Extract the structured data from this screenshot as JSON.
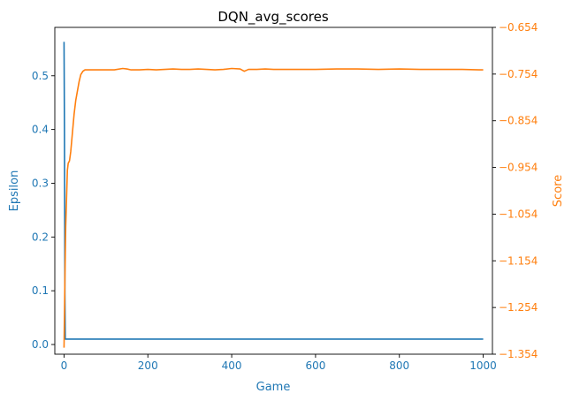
{
  "chart_data": {
    "type": "line",
    "title": "DQN_avg_scores",
    "xlabel": "Game",
    "ylabel_left": "Epsilon",
    "ylabel_right": "Score",
    "xlim": [
      -22,
      1022
    ],
    "ylim_left": [
      -0.018,
      0.59
    ],
    "ylim_right": [
      -1.354,
      -0.654
    ],
    "x_ticks": [
      0,
      200,
      400,
      600,
      800,
      1000
    ],
    "y_ticks_left": [
      0.0,
      0.1,
      0.2,
      0.3,
      0.4,
      0.5
    ],
    "y_ticks_right": [
      -1.354,
      -1.254,
      -1.154,
      -1.054,
      -0.954,
      -0.854,
      -0.754,
      -0.654
    ],
    "y_tick_labels_right": [
      "−1.354",
      "−1.254",
      "−1.154",
      "−1.054",
      "−0.954",
      "−0.854",
      "−0.754",
      "−0.654"
    ],
    "grid": false,
    "colors": {
      "epsilon": "#1f77b4",
      "score": "#ff7f0e"
    },
    "series": [
      {
        "axis": "left",
        "x": [
          0,
          1,
          2,
          3,
          1000
        ],
        "values": [
          0.563,
          0.4,
          0.1,
          0.01,
          0.01
        ]
      },
      {
        "axis": "right",
        "x": [
          0,
          2,
          4,
          6,
          8,
          10,
          13,
          16,
          20,
          24,
          28,
          32,
          36,
          40,
          45,
          50,
          60,
          80,
          100,
          120,
          140,
          150,
          160,
          180,
          200,
          220,
          240,
          260,
          280,
          300,
          320,
          340,
          360,
          380,
          400,
          420,
          430,
          440,
          460,
          480,
          500,
          550,
          600,
          650,
          700,
          750,
          800,
          850,
          900,
          950,
          990,
          1000
        ],
        "values": [
          -1.34,
          -1.2,
          -1.08,
          -1.02,
          -0.96,
          -0.945,
          -0.94,
          -0.92,
          -0.88,
          -0.84,
          -0.81,
          -0.79,
          -0.77,
          -0.755,
          -0.748,
          -0.745,
          -0.745,
          -0.745,
          -0.745,
          -0.745,
          -0.742,
          -0.743,
          -0.745,
          -0.745,
          -0.744,
          -0.745,
          -0.744,
          -0.743,
          -0.744,
          -0.744,
          -0.743,
          -0.744,
          -0.745,
          -0.744,
          -0.742,
          -0.743,
          -0.748,
          -0.744,
          -0.744,
          -0.743,
          -0.744,
          -0.744,
          -0.744,
          -0.743,
          -0.743,
          -0.744,
          -0.743,
          -0.744,
          -0.744,
          -0.744,
          -0.745,
          -0.745
        ]
      }
    ]
  }
}
